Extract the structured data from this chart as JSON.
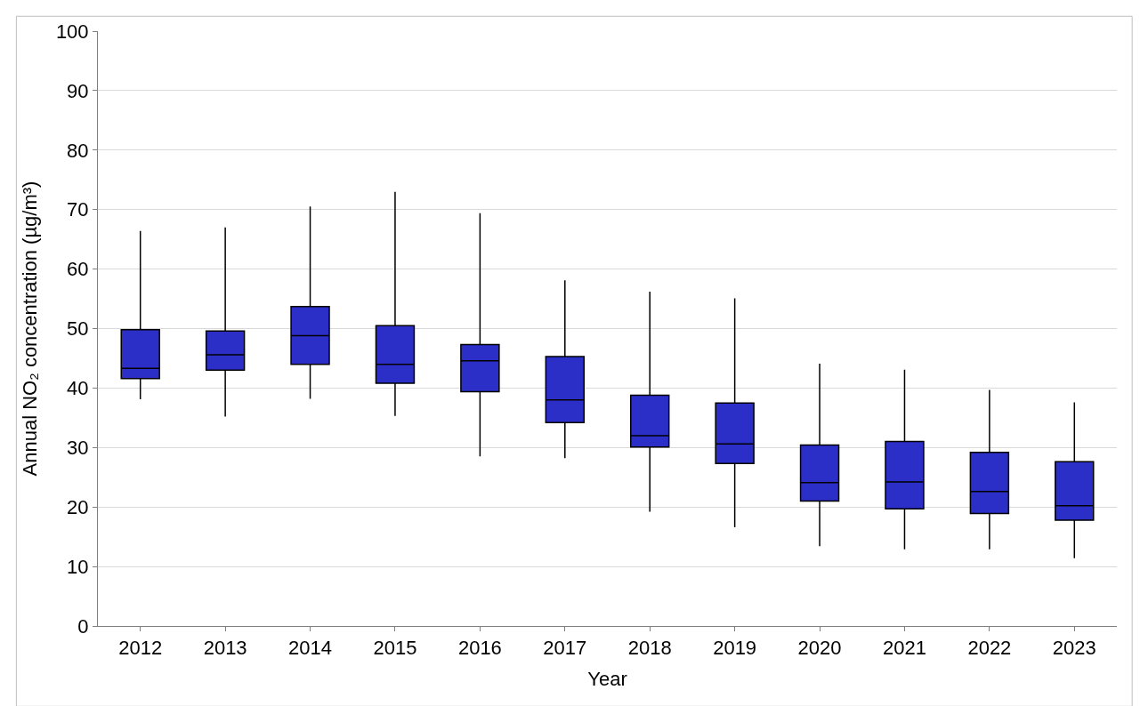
{
  "chart_data": {
    "type": "box",
    "xlabel": "Year",
    "ylabel": "Annual NO₂ concentration (µg/m³)",
    "categories": [
      "2012",
      "2013",
      "2014",
      "2015",
      "2016",
      "2017",
      "2018",
      "2019",
      "2020",
      "2021",
      "2022",
      "2023"
    ],
    "series": [
      {
        "color": "#2b2fc8",
        "boxes": [
          {
            "low": 38.1,
            "q1": 41.6,
            "median": 43.3,
            "q3": 49.8,
            "high": 66.4
          },
          {
            "low": 35.2,
            "q1": 43.0,
            "median": 45.6,
            "q3": 49.6,
            "high": 67.0
          },
          {
            "low": 38.2,
            "q1": 44.0,
            "median": 48.8,
            "q3": 53.7,
            "high": 70.5
          },
          {
            "low": 35.3,
            "q1": 40.8,
            "median": 44.0,
            "q3": 50.5,
            "high": 73.0
          },
          {
            "low": 28.5,
            "q1": 39.4,
            "median": 44.6,
            "q3": 47.3,
            "high": 69.4
          },
          {
            "low": 28.2,
            "q1": 34.2,
            "median": 38.0,
            "q3": 45.3,
            "high": 58.1
          },
          {
            "low": 19.2,
            "q1": 30.1,
            "median": 32.0,
            "q3": 38.8,
            "high": 56.2
          },
          {
            "low": 16.6,
            "q1": 27.3,
            "median": 30.6,
            "q3": 37.5,
            "high": 55.1
          },
          {
            "low": 13.4,
            "q1": 21.0,
            "median": 24.1,
            "q3": 30.4,
            "high": 44.1
          },
          {
            "low": 12.9,
            "q1": 19.7,
            "median": 24.2,
            "q3": 31.0,
            "high": 43.1
          },
          {
            "low": 12.9,
            "q1": 18.9,
            "median": 22.6,
            "q3": 29.2,
            "high": 39.7
          },
          {
            "low": 11.4,
            "q1": 17.8,
            "median": 20.2,
            "q3": 27.6,
            "high": 37.6
          }
        ]
      }
    ],
    "ylim": [
      0,
      100
    ],
    "yticks": [
      0,
      10,
      20,
      30,
      40,
      50,
      60,
      70,
      80,
      90,
      100
    ],
    "grid": "y"
  }
}
